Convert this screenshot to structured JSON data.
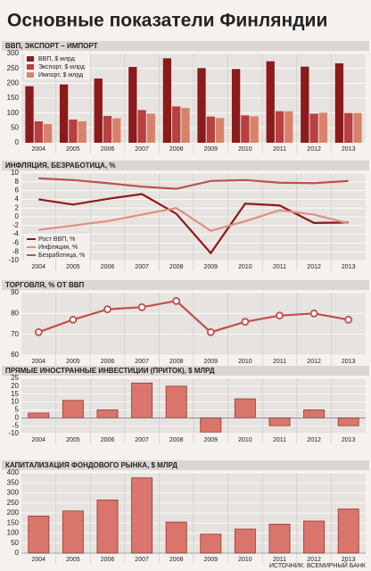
{
  "title": "Основные показатели Финляндии",
  "source": "ИСТОЧНИК: ВСЕМИРНЫЙ БАНК",
  "chart_data": [
    {
      "type": "bar",
      "title": "ВВП, ЭКСПОРТ – ИМПОРТ",
      "categories": [
        "2004",
        "2005",
        "2006",
        "2007",
        "2008",
        "2009",
        "2010",
        "2011",
        "2012",
        "2013"
      ],
      "series": [
        {
          "name": "ВВП, $ млрд",
          "color": "#8b1a1a",
          "values": [
            190,
            196,
            216,
            255,
            284,
            251,
            248,
            274,
            256,
            267
          ]
        },
        {
          "name": "Экспорт, $ млрд",
          "color": "#b84040",
          "values": [
            72,
            78,
            90,
            110,
            122,
            88,
            92,
            106,
            98,
            100
          ]
        },
        {
          "name": "Импорт, $ млрд",
          "color": "#d9826b",
          "values": [
            63,
            72,
            82,
            98,
            117,
            83,
            89,
            106,
            101,
            100
          ]
        }
      ],
      "ylim": [
        0,
        300
      ],
      "yticks": [
        0,
        50,
        100,
        150,
        200,
        250,
        300
      ],
      "grid": true,
      "legend": "upper left"
    },
    {
      "type": "line",
      "title": "ИНФЛЯЦИЯ, БЕЗРАБОТИЦА, %",
      "categories": [
        "2004",
        "2005",
        "2006",
        "2007",
        "2008",
        "2009",
        "2010",
        "2011",
        "2012",
        "2013"
      ],
      "series": [
        {
          "name": "Рост ВВП, %",
          "color": "#8b1a1a",
          "values": [
            4.0,
            2.8,
            4.1,
            5.2,
            0.7,
            -8.3,
            3.0,
            2.6,
            -1.4,
            -1.3
          ]
        },
        {
          "name": "Инфляция, %",
          "color": "#e09080",
          "values": [
            -3,
            -2,
            -1,
            0.5,
            2,
            -3.2,
            -1,
            1.5,
            0.5,
            -1.5
          ]
        },
        {
          "name": "Безработица, %",
          "color": "#c0504d",
          "values": [
            8.8,
            8.4,
            7.7,
            6.9,
            6.4,
            8.2,
            8.4,
            7.8,
            7.7,
            8.2
          ]
        }
      ],
      "ylim": [
        -10,
        10
      ],
      "yticks": [
        -10,
        -8,
        -6,
        -4,
        -2,
        0,
        2,
        4,
        6,
        8,
        10
      ],
      "grid": true,
      "legend": "lower left"
    },
    {
      "type": "line",
      "title": "ТОРГОВЛЯ, % ОТ ВВП",
      "categories": [
        "2004",
        "2005",
        "2006",
        "2007",
        "2008",
        "2009",
        "2010",
        "2011",
        "2012",
        "2013"
      ],
      "series": [
        {
          "color": "#c0504d",
          "values": [
            71,
            77,
            82,
            83,
            86,
            71,
            76,
            79,
            80,
            77
          ]
        }
      ],
      "markers": true,
      "ylim": [
        60,
        90
      ],
      "yticks": [
        60,
        70,
        80,
        90
      ],
      "grid": true
    },
    {
      "type": "bar",
      "title": "ПРЯМЫЕ ИНОСТРАННЫЕ ИНВЕСТИЦИИ (ПРИТОК), $ МЛРД",
      "categories": [
        "2004",
        "2005",
        "2006",
        "2007",
        "2008",
        "2009",
        "2010",
        "2011",
        "2012",
        "2013"
      ],
      "series": [
        {
          "color": "#d9756a",
          "values": [
            3,
            11,
            5,
            22,
            20,
            -9,
            12,
            -5,
            5,
            -5
          ]
        }
      ],
      "ylim": [
        -10,
        25
      ],
      "yticks": [
        -10,
        -5,
        0,
        5,
        10,
        15,
        20,
        25
      ],
      "grid": true
    },
    {
      "type": "bar",
      "title": "КАПИТАЛИЗАЦИЯ ФОНДОВОГО РЫНКА, $ МЛРД",
      "categories": [
        "2004",
        "2005",
        "2006",
        "2007",
        "2008",
        "2009",
        "2010",
        "2011",
        "2012",
        "2013"
      ],
      "series": [
        {
          "color": "#d9756a",
          "values": [
            185,
            210,
            265,
            375,
            155,
            95,
            120,
            145,
            160,
            220
          ]
        }
      ],
      "ylim": [
        0,
        400
      ],
      "yticks": [
        0,
        50,
        100,
        150,
        200,
        250,
        300,
        350,
        400
      ],
      "grid": true
    }
  ]
}
